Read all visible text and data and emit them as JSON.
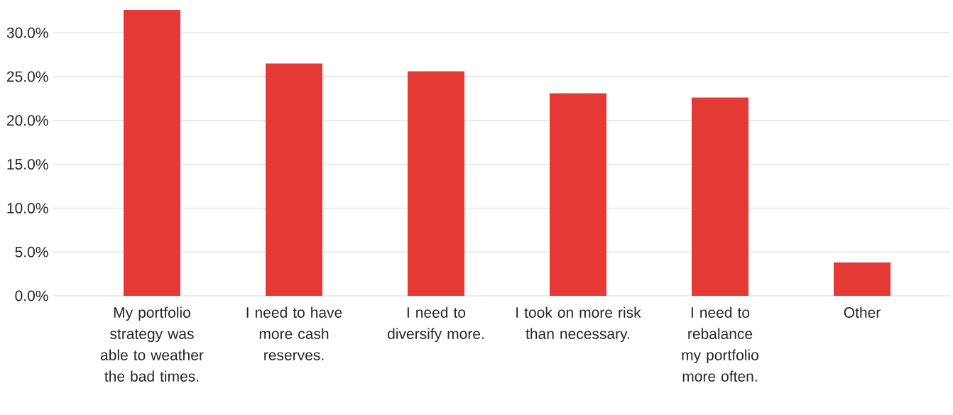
{
  "chart_data": {
    "type": "bar",
    "categories": [
      "My portfolio strategy was able to weather the bad times.",
      "I need to have more cash reserves.",
      "I need to diversify more.",
      "I took on more risk than necessary.",
      "I need to rebalance my portfolio more often.",
      "Other"
    ],
    "values": [
      32.6,
      26.5,
      25.6,
      23.1,
      22.6,
      3.8
    ],
    "color": "#e53935",
    "ylim": [
      0,
      32.6
    ],
    "yticks": [
      {
        "value": 0,
        "label": "0.0%"
      },
      {
        "value": 5,
        "label": "5.0%"
      },
      {
        "value": 10,
        "label": "10.0%"
      },
      {
        "value": 15,
        "label": "15.0%"
      },
      {
        "value": 20,
        "label": "20.0%"
      },
      {
        "value": 25,
        "label": "25.0%"
      },
      {
        "value": 30,
        "label": "30.0%"
      }
    ],
    "grid": "y"
  }
}
